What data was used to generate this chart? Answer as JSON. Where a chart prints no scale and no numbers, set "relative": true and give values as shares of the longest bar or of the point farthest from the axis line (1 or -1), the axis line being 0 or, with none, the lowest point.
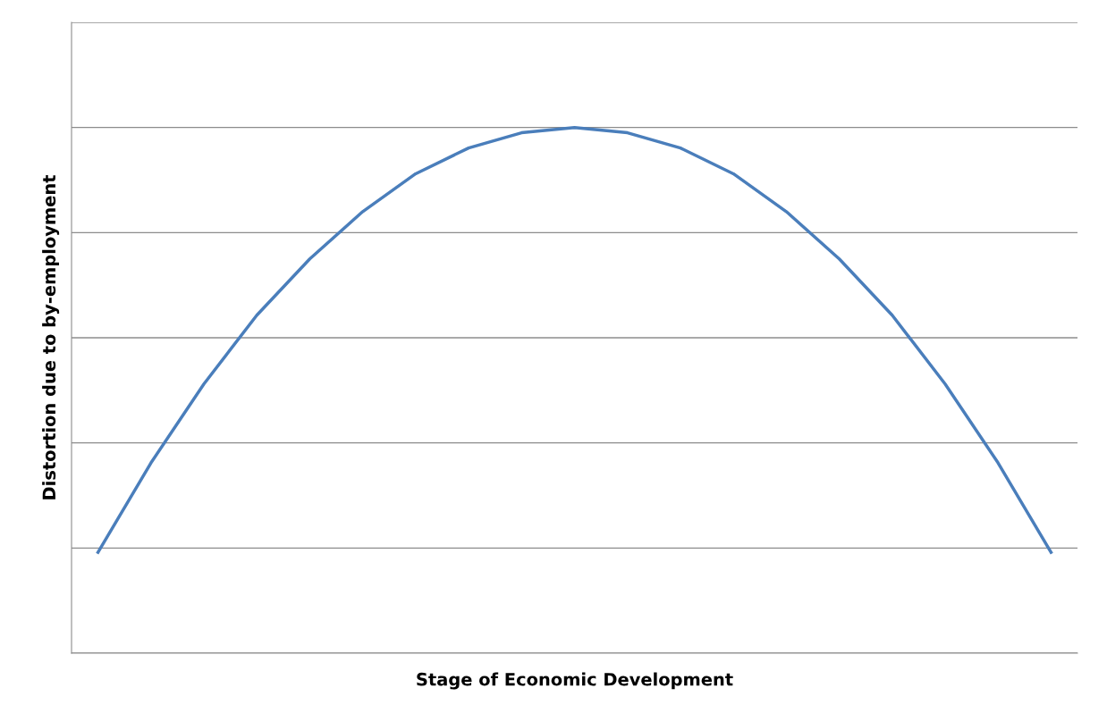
{
  "chart_data": {
    "type": "line",
    "relative": true,
    "grid": "y",
    "marker": "none",
    "line_style": "solid",
    "xlabel": "Stage of Economic Development",
    "ylabel": "Distortion due to by-employment",
    "categories": [
      null,
      null,
      null,
      null,
      null,
      null,
      null,
      null,
      null,
      null,
      null,
      null,
      null,
      null,
      null,
      null,
      null,
      null,
      null
    ],
    "series": [
      {
        "color": "#4a7ebb",
        "values": [
          0.192,
          0.362,
          0.512,
          0.643,
          0.75,
          0.84,
          0.912,
          0.961,
          0.99,
          1,
          0.99,
          0.961,
          0.912,
          0.84,
          0.75,
          0.643,
          0.512,
          0.362,
          0.192
        ]
      }
    ]
  }
}
